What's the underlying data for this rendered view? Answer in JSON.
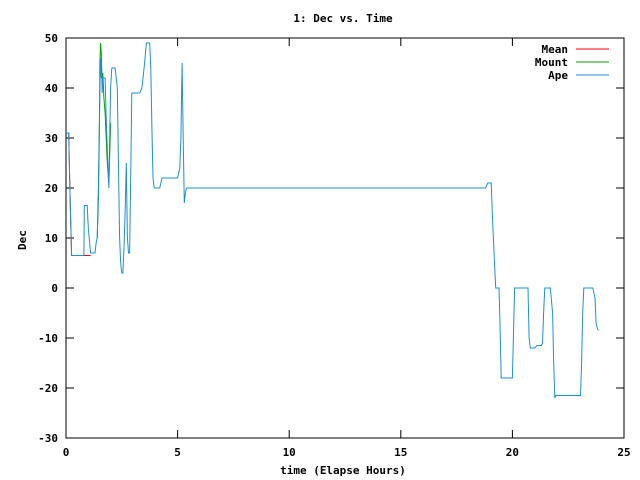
{
  "chart_data": {
    "type": "line",
    "title": "1: Dec vs. Time",
    "xlabel": "time (Elapse Hours)",
    "ylabel": "Dec",
    "xlim": [
      0,
      25
    ],
    "ylim": [
      -30,
      50
    ],
    "x_ticks": [
      0,
      5,
      10,
      15,
      20,
      25
    ],
    "y_ticks": [
      -30,
      -20,
      -10,
      0,
      10,
      20,
      30,
      40,
      50
    ],
    "x_tick_labels": [
      "0",
      "5",
      "10",
      "15",
      "20",
      "25"
    ],
    "y_tick_labels": [
      "-30",
      "-20",
      "-10",
      "0",
      "10",
      "20",
      "30",
      "40",
      "50"
    ],
    "grid": false,
    "legend_position": "top-right",
    "series": [
      {
        "name": "Mean",
        "color": "#ff0000",
        "x": [
          0.0,
          0.12,
          0.15,
          0.2,
          0.25,
          0.3,
          0.35,
          0.4,
          0.45,
          0.5,
          0.55,
          0.6,
          0.65,
          0.7,
          0.75,
          0.8,
          0.85,
          0.9,
          0.95,
          1.0,
          1.05,
          1.1
        ],
        "y": [
          31,
          31,
          25,
          15,
          6.5,
          6.5,
          6.5,
          6.5,
          6.5,
          6.5,
          6.5,
          6.5,
          6.5,
          6.5,
          6.5,
          6.5,
          6.5,
          6.5,
          6.5,
          6.5,
          6.5,
          6.5
        ]
      },
      {
        "name": "Mount",
        "color": "#00a000",
        "x": [
          1.4,
          1.45,
          1.5,
          1.52,
          1.55,
          1.58,
          1.6,
          1.62,
          1.65,
          1.7,
          1.75,
          1.8,
          1.85,
          1.9,
          1.92,
          1.95,
          1.98,
          2.0
        ],
        "y": [
          10,
          20,
          35,
          45,
          49,
          47,
          44,
          41,
          43,
          38,
          35,
          30,
          25,
          22,
          21,
          25,
          30,
          33
        ]
      },
      {
        "name": "Ape",
        "color": "#1f8fd0",
        "x": [
          0.0,
          0.12,
          0.15,
          0.2,
          0.25,
          0.3,
          0.45,
          0.6,
          0.7,
          0.8,
          0.82,
          0.9,
          0.95,
          1.0,
          1.1,
          1.2,
          1.3,
          1.35,
          1.4,
          1.45,
          1.5,
          1.52,
          1.55,
          1.58,
          1.6,
          1.62,
          1.65,
          1.7,
          1.75,
          1.8,
          1.85,
          1.9,
          1.92,
          1.95,
          2.0,
          2.05,
          2.1,
          2.2,
          2.3,
          2.4,
          2.45,
          2.5,
          2.55,
          2.6,
          2.65,
          2.7,
          2.75,
          2.8,
          2.85,
          2.9,
          2.95,
          3.0,
          3.05,
          3.1,
          3.15,
          3.2,
          3.3,
          3.4,
          3.5,
          3.6,
          3.65,
          3.7,
          3.75,
          3.8,
          3.85,
          3.9,
          3.95,
          4.0,
          4.1,
          4.2,
          4.3,
          4.4,
          4.6,
          4.8,
          5.0,
          5.1,
          5.15,
          5.2,
          5.25,
          5.3,
          5.35,
          5.4,
          5.5,
          5.7,
          6.0,
          8.0,
          10.0,
          12.0,
          14.0,
          15.0,
          16.0,
          18.0,
          18.8,
          18.9,
          19.0,
          19.05,
          19.1,
          19.15,
          19.2,
          19.25,
          19.3,
          19.4,
          19.45,
          19.5,
          19.6,
          19.7,
          19.8,
          19.9,
          20.0,
          20.1,
          20.2,
          20.3,
          20.4,
          20.5,
          20.6,
          20.7,
          20.75,
          20.8,
          20.85,
          20.9,
          21.0,
          21.1,
          21.2,
          21.3,
          21.35,
          21.4,
          21.45,
          21.5,
          21.55,
          21.6,
          21.7,
          21.8,
          21.85,
          21.9,
          21.95,
          22.0,
          22.1,
          22.2,
          22.4,
          22.6,
          22.8,
          23.0,
          23.05,
          23.1,
          23.15,
          23.2,
          23.3,
          23.4,
          23.5,
          23.55,
          23.6,
          23.7,
          23.75,
          23.8,
          23.85
        ],
        "y": [
          31,
          31,
          25,
          15,
          6.5,
          6.5,
          6.5,
          6.5,
          6.5,
          6.5,
          16.5,
          16.5,
          16.5,
          12,
          7,
          7,
          7,
          9,
          10,
          17,
          33,
          40,
          46,
          42,
          43,
          39,
          42,
          42,
          42,
          34,
          28,
          22,
          20,
          28,
          40,
          44,
          44,
          44,
          40,
          10,
          5,
          3,
          3,
          8,
          15,
          25,
          10,
          7,
          7,
          22,
          39,
          39,
          39,
          39,
          39,
          39,
          39,
          40,
          44,
          49,
          49,
          49,
          49,
          44,
          32,
          22,
          20,
          20,
          20,
          20,
          22,
          22,
          22,
          22,
          22,
          24,
          30,
          45,
          30,
          17,
          19,
          20,
          20,
          20,
          20,
          20,
          20,
          20,
          20,
          20,
          20,
          20,
          20,
          21,
          21,
          21,
          15,
          10,
          5,
          0,
          0,
          0,
          -8,
          -18,
          -18,
          -18,
          -18,
          -18,
          -18,
          0,
          0,
          0,
          0,
          0,
          0,
          0,
          -10,
          -12,
          -12,
          -12,
          -12,
          -11.5,
          -11.5,
          -11.5,
          -11,
          -5,
          0,
          0,
          0,
          0,
          0,
          -5,
          -15,
          -22,
          -21.5,
          -21.5,
          -21.5,
          -21.5,
          -21.5,
          -21.5,
          -21.5,
          -21.5,
          -21.5,
          -15,
          -5,
          0,
          0,
          0,
          0,
          0,
          0,
          -2,
          -7,
          -8,
          -8.5
        ]
      }
    ]
  }
}
